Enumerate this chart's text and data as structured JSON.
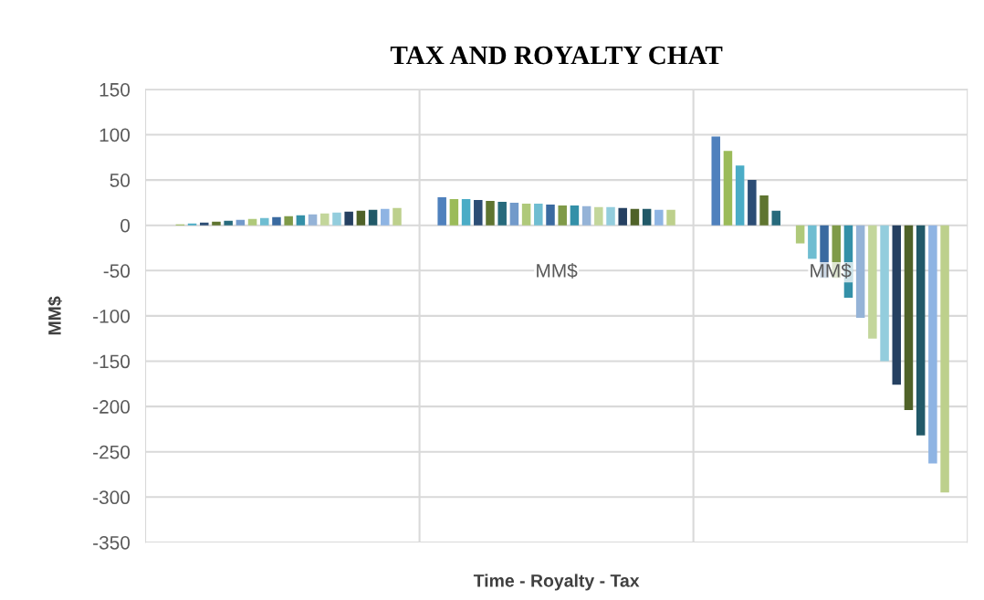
{
  "chart_data": {
    "type": "bar",
    "title": "TAX AND ROYALTY CHAT",
    "xlabel": "Time - Royalty - Tax",
    "ylabel": "MM$",
    "categories": [
      null,
      "MM$",
      "MM$"
    ],
    "ylim": [
      -350,
      150
    ],
    "yticks": [
      -350,
      -300,
      -250,
      -200,
      -150,
      -100,
      -50,
      0,
      50,
      100,
      150
    ],
    "grid": true,
    "legend": false,
    "series": [
      {
        "color": "#4f81bd",
        "values": [
          0,
          31,
          98
        ]
      },
      {
        "color": "#9bbb59",
        "values": [
          1,
          29,
          82
        ]
      },
      {
        "color": "#4bacc6",
        "values": [
          2,
          29,
          66
        ]
      },
      {
        "color": "#2c4d75",
        "values": [
          3,
          28,
          50
        ]
      },
      {
        "color": "#5f7530",
        "values": [
          4,
          27,
          33
        ]
      },
      {
        "color": "#276a7c",
        "values": [
          5,
          26,
          16
        ]
      },
      {
        "color": "#729aca",
        "values": [
          6,
          25,
          0
        ]
      },
      {
        "color": "#afc97a",
        "values": [
          7,
          24,
          -20
        ]
      },
      {
        "color": "#6fbdd1",
        "values": [
          8,
          24,
          -37
        ]
      },
      {
        "color": "#3a6aa0",
        "values": [
          9,
          23,
          -58
        ]
      },
      {
        "color": "#7f9a48",
        "values": [
          10,
          22,
          -58
        ]
      },
      {
        "color": "#3490a8",
        "values": [
          11,
          22,
          -80
        ]
      },
      {
        "color": "#95b3d7",
        "values": [
          12,
          21,
          -102
        ]
      },
      {
        "color": "#c3d69b",
        "values": [
          13,
          20,
          -125
        ]
      },
      {
        "color": "#93cddd",
        "values": [
          14,
          20,
          -150
        ]
      },
      {
        "color": "#254061",
        "values": [
          15,
          19,
          -176
        ]
      },
      {
        "color": "#4f6228",
        "values": [
          16,
          18,
          -204
        ]
      },
      {
        "color": "#215968",
        "values": [
          17,
          18,
          -232
        ]
      },
      {
        "color": "#8eb4e3",
        "values": [
          18,
          17,
          -263
        ]
      },
      {
        "color": "#bdd08c",
        "values": [
          19,
          17,
          -295
        ]
      }
    ]
  }
}
